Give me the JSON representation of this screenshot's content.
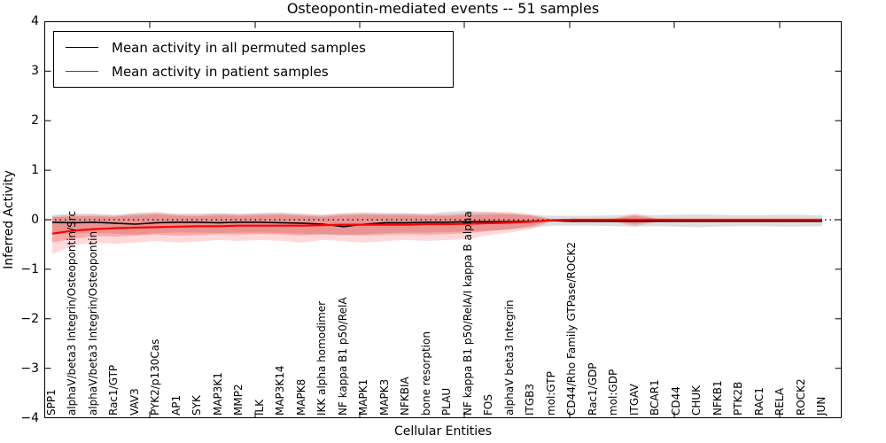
{
  "title": "Osteopontin-mediated events -- 51 samples",
  "axes": {
    "xlabel": "Cellular Entities",
    "ylabel": "Inferred Activity",
    "ytick_labels": [
      "4",
      "3",
      "2",
      "1",
      "0",
      "−1",
      "−2",
      "−3",
      "−4"
    ],
    "ylim": [
      -4,
      4
    ]
  },
  "legend": {
    "items": [
      {
        "label": "Mean activity in all permuted samples",
        "color": "#000000"
      },
      {
        "label": "Mean activity in patient samples",
        "color": "#ff0000"
      }
    ]
  },
  "chart_data": {
    "type": "line",
    "title": "Osteopontin-mediated events -- 51 samples",
    "xlabel": "Cellular Entities",
    "ylabel": "Inferred Activity",
    "ylim": [
      -4,
      4
    ],
    "grid": false,
    "legend_position": "upper left",
    "zero_line_style": "dotted",
    "categories": [
      "SPP1",
      "alphaV/beta3 Integrin/Osteopontin/Src",
      "alphaV/beta3 Integrin/Osteopontin",
      "Rac1/GTP",
      "VAV3",
      "PYK2/p130Cas",
      "AP1",
      "SYK",
      "MAP3K1",
      "MMP2",
      "ILK",
      "MAP3K14",
      "MAPK8",
      "IKK alpha homodimer",
      "NF kappa B1 p50/RelA",
      "MAPK1",
      "MAPK3",
      "NFKBIA",
      "bone resorption",
      "PLAU",
      "NF kappa B1 p50/RelA/I kappa B alpha",
      "FOS",
      "alphaV beta3 Integrin",
      "ITGB3",
      "mol:GTP",
      "CD44/Rho Family GTPase/ROCK2",
      "Rac1/GDP",
      "mol:GDP",
      "ITGAV",
      "BCAR1",
      "CD44",
      "CHUK",
      "NFKB1",
      "PTK2B",
      "RAC1",
      "RELA",
      "ROCK2",
      "JUN"
    ],
    "series": [
      {
        "name": "Mean activity in all permuted samples",
        "kind": "line",
        "color": "#000000",
        "width": 1.6,
        "values": [
          -0.05,
          -0.06,
          -0.05,
          -0.07,
          -0.09,
          -0.06,
          -0.05,
          -0.05,
          -0.06,
          -0.05,
          -0.05,
          -0.06,
          -0.07,
          -0.09,
          -0.14,
          -0.09,
          -0.06,
          -0.06,
          -0.05,
          -0.05,
          -0.04,
          -0.04,
          -0.04,
          -0.03,
          -0.02,
          -0.03,
          -0.03,
          -0.03,
          -0.03,
          -0.03,
          -0.03,
          -0.03,
          -0.03,
          -0.03,
          -0.03,
          -0.03,
          -0.03,
          -0.03
        ]
      },
      {
        "name": "Permuted samples spread",
        "kind": "band",
        "color": "#000000",
        "opacity": 0.13,
        "upper": [
          0.1,
          0.12,
          0.12,
          0.1,
          0.13,
          0.14,
          0.12,
          0.12,
          0.13,
          0.12,
          0.13,
          0.14,
          0.12,
          0.1,
          0.13,
          0.14,
          0.13,
          0.13,
          0.12,
          0.16,
          0.18,
          0.15,
          0.13,
          0.1,
          0.08,
          0.08,
          0.08,
          0.09,
          0.1,
          0.09,
          0.1,
          0.11,
          0.1,
          0.09,
          0.09,
          0.1,
          0.1,
          0.09
        ],
        "lower": [
          -0.3,
          -0.28,
          -0.27,
          -0.28,
          -0.3,
          -0.27,
          -0.26,
          -0.26,
          -0.27,
          -0.26,
          -0.26,
          -0.27,
          -0.28,
          -0.3,
          -0.32,
          -0.29,
          -0.27,
          -0.26,
          -0.26,
          -0.25,
          -0.24,
          -0.22,
          -0.2,
          -0.16,
          -0.12,
          -0.12,
          -0.12,
          -0.13,
          -0.14,
          -0.13,
          -0.14,
          -0.15,
          -0.14,
          -0.13,
          -0.13,
          -0.14,
          -0.14,
          -0.13
        ]
      },
      {
        "name": "Mean activity in patient samples",
        "kind": "line",
        "color": "#ff0000",
        "width": 2.2,
        "values": [
          -0.28,
          -0.22,
          -0.19,
          -0.17,
          -0.16,
          -0.15,
          -0.14,
          -0.13,
          -0.13,
          -0.12,
          -0.12,
          -0.12,
          -0.12,
          -0.11,
          -0.1,
          -0.1,
          -0.1,
          -0.1,
          -0.09,
          -0.09,
          -0.08,
          -0.07,
          -0.06,
          -0.04,
          -0.01,
          0.0,
          0.0,
          0.0,
          0.0,
          0.0,
          0.0,
          0.0,
          0.0,
          0.0,
          0.0,
          0.0,
          0.0,
          0.0
        ]
      },
      {
        "name": "Patient samples spread (outer)",
        "kind": "band",
        "color": "#ff0000",
        "opacity": 0.15,
        "upper": [
          0.07,
          0.1,
          0.1,
          0.08,
          0.13,
          0.16,
          0.11,
          0.1,
          0.13,
          0.11,
          0.13,
          0.14,
          0.11,
          0.09,
          0.13,
          0.14,
          0.13,
          0.13,
          0.11,
          0.11,
          0.14,
          0.16,
          0.16,
          0.11,
          0.01,
          0.02,
          0.02,
          0.03,
          0.12,
          0.03,
          0.02,
          0.02,
          0.02,
          0.02,
          0.02,
          0.02,
          0.02,
          0.02
        ],
        "lower": [
          -0.7,
          -0.52,
          -0.46,
          -0.49,
          -0.46,
          -0.43,
          -0.46,
          -0.44,
          -0.41,
          -0.43,
          -0.41,
          -0.43,
          -0.46,
          -0.41,
          -0.43,
          -0.46,
          -0.43,
          -0.41,
          -0.43,
          -0.41,
          -0.39,
          -0.31,
          -0.26,
          -0.19,
          -0.03,
          -0.03,
          -0.04,
          -0.05,
          -0.13,
          -0.05,
          -0.04,
          -0.04,
          -0.04,
          -0.04,
          -0.04,
          -0.04,
          -0.04,
          -0.04
        ]
      },
      {
        "name": "Patient samples spread (inner)",
        "kind": "band",
        "color": "#ff0000",
        "opacity": 0.22,
        "upper": [
          0.05,
          0.07,
          0.07,
          0.06,
          0.09,
          0.11,
          0.08,
          0.07,
          0.09,
          0.08,
          0.09,
          0.1,
          0.08,
          0.06,
          0.09,
          0.1,
          0.09,
          0.09,
          0.08,
          0.08,
          0.1,
          0.11,
          0.11,
          0.08,
          0.01,
          0.01,
          0.01,
          0.02,
          0.08,
          0.02,
          0.01,
          0.01,
          0.01,
          0.01,
          0.01,
          0.01,
          0.01,
          0.01
        ],
        "lower": [
          -0.46,
          -0.38,
          -0.33,
          -0.34,
          -0.32,
          -0.3,
          -0.32,
          -0.31,
          -0.29,
          -0.3,
          -0.29,
          -0.3,
          -0.32,
          -0.29,
          -0.3,
          -0.32,
          -0.3,
          -0.29,
          -0.3,
          -0.29,
          -0.27,
          -0.23,
          -0.19,
          -0.13,
          -0.02,
          -0.02,
          -0.03,
          -0.03,
          -0.09,
          -0.03,
          -0.03,
          -0.03,
          -0.03,
          -0.03,
          -0.03,
          -0.03,
          -0.03,
          -0.03
        ]
      }
    ]
  }
}
